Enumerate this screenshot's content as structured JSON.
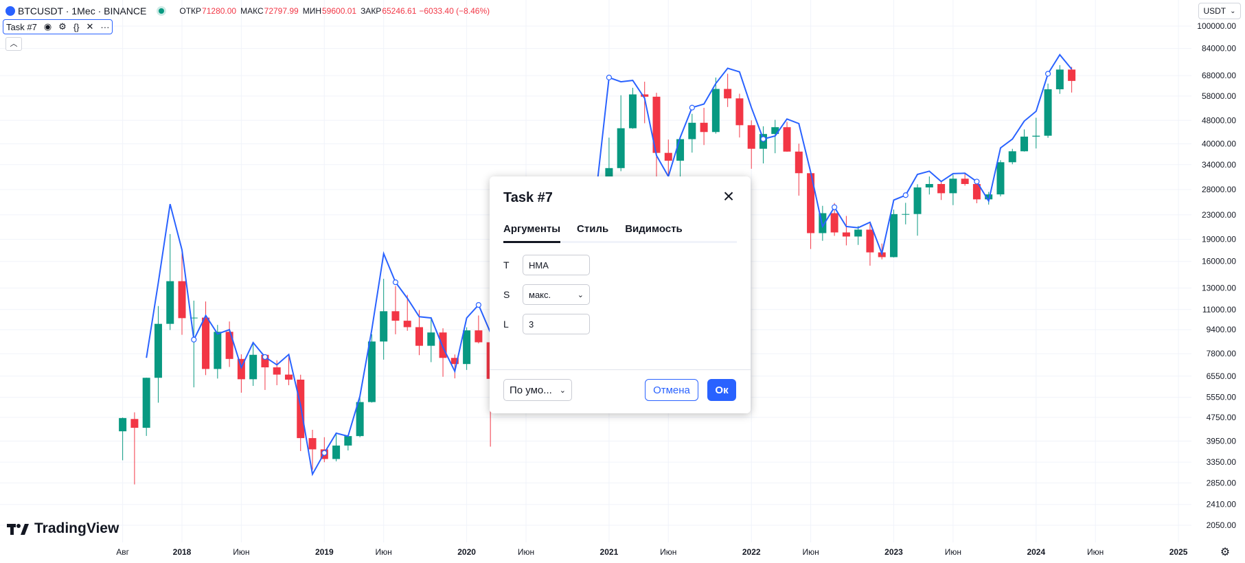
{
  "legend": {
    "symbol": "BTCUSDT · 1Мес · BINANCE",
    "open_label": "ОТКР",
    "open": "71280.00",
    "high_label": "МАКС",
    "high": "72797.99",
    "low_label": "МИН",
    "low": "59600.01",
    "close_label": "ЗАКР",
    "close": "65246.61",
    "change": "−6033.40 (−8.46%)"
  },
  "study": {
    "label": "Task #7",
    "icons": [
      "eye-icon",
      "settings-icon",
      "source-code-icon",
      "close-icon",
      "more-icon"
    ]
  },
  "currency": "USDT",
  "logo": "TradingView",
  "colors": {
    "up": "#089981",
    "down": "#f23645",
    "line": "#2962ff",
    "accent": "#2962ff"
  },
  "chart_data": {
    "type": "candlestick",
    "y_scale": "log",
    "y_ticks": [
      "100000.00",
      "84000.00",
      "68000.00",
      "58000.00",
      "48000.00",
      "40000.00",
      "34000.00",
      "28000.00",
      "23000.00",
      "19000.00",
      "16000.00",
      "13000.00",
      "11000.00",
      "9400.00",
      "7800.00",
      "6550.00",
      "5550.00",
      "4750.00",
      "3950.00",
      "3350.00",
      "2850.00",
      "2410.00",
      "2050.00"
    ],
    "x_ticks": [
      "Авг",
      "2018",
      "Июн",
      "2019",
      "Июн",
      "2020",
      "Июн",
      "2021",
      "Июн",
      "2022",
      "Июн",
      "2023",
      "Июн",
      "2024",
      "Июн",
      "2025"
    ],
    "candles": [
      {
        "m": "2017-08",
        "o": 4261,
        "h": 4745,
        "l": 3400,
        "c": 4724
      },
      {
        "m": "2017-09",
        "o": 4689,
        "h": 4939,
        "l": 2817,
        "c": 4378
      },
      {
        "m": "2017-10",
        "o": 4378,
        "h": 6470,
        "l": 4110,
        "c": 6463
      },
      {
        "m": "2017-11",
        "o": 6463,
        "h": 11300,
        "l": 5325,
        "c": 9838
      },
      {
        "m": "2017-12",
        "o": 9838,
        "h": 19798,
        "l": 9380,
        "c": 13716
      },
      {
        "m": "2018-01",
        "o": 13716,
        "h": 17176,
        "l": 9035,
        "c": 10285
      },
      {
        "m": "2018-02",
        "o": 10285,
        "h": 11786,
        "l": 6000,
        "c": 10326
      },
      {
        "m": "2018-03",
        "o": 10326,
        "h": 11710,
        "l": 6600,
        "c": 6923
      },
      {
        "m": "2018-04",
        "o": 6923,
        "h": 9759,
        "l": 6425,
        "c": 9246
      },
      {
        "m": "2018-05",
        "o": 9246,
        "h": 10020,
        "l": 7032,
        "c": 7485
      },
      {
        "m": "2018-06",
        "o": 7485,
        "h": 7760,
        "l": 5755,
        "c": 6391
      },
      {
        "m": "2018-07",
        "o": 6391,
        "h": 8507,
        "l": 6070,
        "c": 7730
      },
      {
        "m": "2018-08",
        "o": 7730,
        "h": 7750,
        "l": 5880,
        "c": 7011
      },
      {
        "m": "2018-09",
        "o": 7011,
        "h": 7410,
        "l": 6100,
        "c": 6626
      },
      {
        "m": "2018-10",
        "o": 6626,
        "h": 7680,
        "l": 6100,
        "c": 6371
      },
      {
        "m": "2018-11",
        "o": 6371,
        "h": 6620,
        "l": 3652,
        "c": 4041
      },
      {
        "m": "2018-12",
        "o": 4041,
        "h": 4311,
        "l": 3156,
        "c": 3702
      },
      {
        "m": "2019-01",
        "o": 3702,
        "h": 4069,
        "l": 3349,
        "c": 3434
      },
      {
        "m": "2019-02",
        "o": 3434,
        "h": 4198,
        "l": 3373,
        "c": 3813
      },
      {
        "m": "2019-03",
        "o": 3813,
        "h": 4140,
        "l": 3670,
        "c": 4105
      },
      {
        "m": "2019-04",
        "o": 4105,
        "h": 5600,
        "l": 4067,
        "c": 5350
      },
      {
        "m": "2019-05",
        "o": 5350,
        "h": 9074,
        "l": 5328,
        "c": 8574
      },
      {
        "m": "2019-06",
        "o": 8574,
        "h": 13970,
        "l": 7444,
        "c": 10854
      },
      {
        "m": "2019-07",
        "o": 10854,
        "h": 13200,
        "l": 9070,
        "c": 10080
      },
      {
        "m": "2019-08",
        "o": 10080,
        "h": 12325,
        "l": 9320,
        "c": 9588
      },
      {
        "m": "2019-09",
        "o": 9588,
        "h": 10954,
        "l": 7710,
        "c": 8293
      },
      {
        "m": "2019-10",
        "o": 8293,
        "h": 10370,
        "l": 7300,
        "c": 9199
      },
      {
        "m": "2019-11",
        "o": 9199,
        "h": 9505,
        "l": 6515,
        "c": 7546
      },
      {
        "m": "2019-12",
        "o": 7546,
        "h": 7750,
        "l": 6435,
        "c": 7195
      },
      {
        "m": "2020-01",
        "o": 7195,
        "h": 9578,
        "l": 6871,
        "c": 9351
      },
      {
        "m": "2020-02",
        "o": 9351,
        "h": 10500,
        "l": 8445,
        "c": 8523
      },
      {
        "m": "2020-03",
        "o": 8523,
        "h": 9188,
        "l": 3782,
        "c": 6410
      },
      {
        "m": "2020-12",
        "o": 19695,
        "h": 29300,
        "l": 17572,
        "c": 28923
      },
      {
        "m": "2021-01",
        "o": 28923,
        "h": 41950,
        "l": 28130,
        "c": 33093
      },
      {
        "m": "2021-02",
        "o": 33093,
        "h": 58352,
        "l": 32296,
        "c": 45135
      },
      {
        "m": "2021-03",
        "o": 45135,
        "h": 61844,
        "l": 44950,
        "c": 58741
      },
      {
        "m": "2021-04",
        "o": 58741,
        "h": 64854,
        "l": 46930,
        "c": 57694
      },
      {
        "m": "2021-05",
        "o": 57694,
        "h": 59500,
        "l": 30000,
        "c": 37254
      },
      {
        "m": "2021-06",
        "o": 37254,
        "h": 41330,
        "l": 28805,
        "c": 35045
      },
      {
        "m": "2021-07",
        "o": 35045,
        "h": 42448,
        "l": 29278,
        "c": 41461
      },
      {
        "m": "2021-08",
        "o": 41461,
        "h": 50500,
        "l": 37332,
        "c": 47100
      },
      {
        "m": "2021-09",
        "o": 47100,
        "h": 52920,
        "l": 39600,
        "c": 43824
      },
      {
        "m": "2021-10",
        "o": 43824,
        "h": 67000,
        "l": 43283,
        "c": 61299
      },
      {
        "m": "2021-11",
        "o": 61299,
        "h": 69000,
        "l": 53256,
        "c": 56950
      },
      {
        "m": "2021-12",
        "o": 56950,
        "h": 59053,
        "l": 42000,
        "c": 46216
      },
      {
        "m": "2022-01",
        "o": 46216,
        "h": 47990,
        "l": 32917,
        "c": 38466
      },
      {
        "m": "2022-02",
        "o": 38466,
        "h": 45821,
        "l": 34322,
        "c": 43160
      },
      {
        "m": "2022-03",
        "o": 43160,
        "h": 48189,
        "l": 37155,
        "c": 45510
      },
      {
        "m": "2022-04",
        "o": 45510,
        "h": 47444,
        "l": 37578,
        "c": 37630
      },
      {
        "m": "2022-05",
        "o": 37630,
        "h": 40023,
        "l": 26700,
        "c": 31801
      },
      {
        "m": "2022-06",
        "o": 31801,
        "h": 31982,
        "l": 17622,
        "c": 19942
      },
      {
        "m": "2022-07",
        "o": 19942,
        "h": 24668,
        "l": 18781,
        "c": 23293
      },
      {
        "m": "2022-08",
        "o": 23293,
        "h": 25211,
        "l": 19520,
        "c": 20050
      },
      {
        "m": "2022-09",
        "o": 20050,
        "h": 22799,
        "l": 18125,
        "c": 19422
      },
      {
        "m": "2022-10",
        "o": 19422,
        "h": 21085,
        "l": 18190,
        "c": 20490
      },
      {
        "m": "2022-11",
        "o": 20490,
        "h": 21480,
        "l": 15476,
        "c": 17164
      },
      {
        "m": "2022-12",
        "o": 17164,
        "h": 18387,
        "l": 16256,
        "c": 16542
      },
      {
        "m": "2023-01",
        "o": 16542,
        "h": 23960,
        "l": 16499,
        "c": 23125
      },
      {
        "m": "2023-02",
        "o": 23125,
        "h": 25250,
        "l": 21351,
        "c": 23141
      },
      {
        "m": "2023-03",
        "o": 23141,
        "h": 29184,
        "l": 19549,
        "c": 28465
      },
      {
        "m": "2023-04",
        "o": 28465,
        "h": 31000,
        "l": 26942,
        "c": 29233
      },
      {
        "m": "2023-05",
        "o": 29233,
        "h": 29820,
        "l": 25811,
        "c": 27210
      },
      {
        "m": "2023-06",
        "o": 27210,
        "h": 31431,
        "l": 24800,
        "c": 30472
      },
      {
        "m": "2023-07",
        "o": 30472,
        "h": 31804,
        "l": 28861,
        "c": 29232
      },
      {
        "m": "2023-08",
        "o": 29232,
        "h": 30244,
        "l": 25166,
        "c": 25940
      },
      {
        "m": "2023-09",
        "o": 25940,
        "h": 27483,
        "l": 24901,
        "c": 26962
      },
      {
        "m": "2023-10",
        "o": 26962,
        "h": 35198,
        "l": 26538,
        "c": 34639
      },
      {
        "m": "2023-11",
        "o": 34639,
        "h": 38450,
        "l": 34097,
        "c": 37723
      },
      {
        "m": "2023-12",
        "o": 37723,
        "h": 44729,
        "l": 37629,
        "c": 42284
      },
      {
        "m": "2024-01",
        "o": 42284,
        "h": 48969,
        "l": 38555,
        "c": 42580
      },
      {
        "m": "2024-02",
        "o": 42580,
        "h": 63913,
        "l": 41884,
        "c": 61130
      },
      {
        "m": "2024-03",
        "o": 61130,
        "h": 73777,
        "l": 59005,
        "c": 71280
      },
      {
        "m": "2024-04",
        "o": 71280,
        "h": 72797,
        "l": 59600,
        "c": 65246
      }
    ],
    "line_series": {
      "name": "Task #7",
      "points": [
        {
          "m": "2017-10",
          "v": 7550
        },
        {
          "m": "2017-11",
          "v": 13500
        },
        {
          "m": "2017-12",
          "v": 25000
        },
        {
          "m": "2018-01",
          "v": 17500
        },
        {
          "m": "2018-02",
          "v": 8700
        },
        {
          "m": "2018-03",
          "v": 10500
        },
        {
          "m": "2018-04",
          "v": 9100
        },
        {
          "m": "2018-05",
          "v": 9400
        },
        {
          "m": "2018-06",
          "v": 7000
        },
        {
          "m": "2018-07",
          "v": 8500
        },
        {
          "m": "2018-08",
          "v": 7600
        },
        {
          "m": "2018-09",
          "v": 7150
        },
        {
          "m": "2018-10",
          "v": 7750
        },
        {
          "m": "2018-11",
          "v": 5200
        },
        {
          "m": "2018-12",
          "v": 3050
        },
        {
          "m": "2019-01",
          "v": 3600
        },
        {
          "m": "2019-02",
          "v": 4200
        },
        {
          "m": "2019-03",
          "v": 4100
        },
        {
          "m": "2019-04",
          "v": 5600
        },
        {
          "m": "2019-05",
          "v": 9400
        },
        {
          "m": "2019-06",
          "v": 17000
        },
        {
          "m": "2019-07",
          "v": 13600
        },
        {
          "m": "2019-08",
          "v": 12000
        },
        {
          "m": "2019-09",
          "v": 10400
        },
        {
          "m": "2019-10",
          "v": 10300
        },
        {
          "m": "2019-11",
          "v": 8200
        },
        {
          "m": "2019-12",
          "v": 6800
        },
        {
          "m": "2020-01",
          "v": 10300
        },
        {
          "m": "2020-02",
          "v": 11400
        },
        {
          "m": "2020-03",
          "v": 9200
        },
        {
          "m": "2020-12",
          "v": 29300
        },
        {
          "m": "2021-01",
          "v": 67000
        },
        {
          "m": "2021-02",
          "v": 64800
        },
        {
          "m": "2021-03",
          "v": 65500
        },
        {
          "m": "2021-04",
          "v": 57000
        },
        {
          "m": "2021-05",
          "v": 36500
        },
        {
          "m": "2021-06",
          "v": 31000
        },
        {
          "m": "2021-07",
          "v": 42000
        },
        {
          "m": "2021-08",
          "v": 53000
        },
        {
          "m": "2021-09",
          "v": 54500
        },
        {
          "m": "2021-10",
          "v": 64000
        },
        {
          "m": "2021-11",
          "v": 72000
        },
        {
          "m": "2021-12",
          "v": 70000
        },
        {
          "m": "2022-01",
          "v": 53000
        },
        {
          "m": "2022-02",
          "v": 41500
        },
        {
          "m": "2022-03",
          "v": 42500
        },
        {
          "m": "2022-04",
          "v": 48500
        },
        {
          "m": "2022-05",
          "v": 46800
        },
        {
          "m": "2022-06",
          "v": 32000
        },
        {
          "m": "2022-07",
          "v": 21000
        },
        {
          "m": "2022-08",
          "v": 24400
        },
        {
          "m": "2022-09",
          "v": 21000
        },
        {
          "m": "2022-10",
          "v": 20800
        },
        {
          "m": "2022-11",
          "v": 21700
        },
        {
          "m": "2022-12",
          "v": 17000
        },
        {
          "m": "2023-01",
          "v": 25800
        },
        {
          "m": "2023-02",
          "v": 26800
        },
        {
          "m": "2023-03",
          "v": 31500
        },
        {
          "m": "2023-04",
          "v": 32300
        },
        {
          "m": "2023-05",
          "v": 29800
        },
        {
          "m": "2023-06",
          "v": 31700
        },
        {
          "m": "2023-07",
          "v": 31800
        },
        {
          "m": "2023-08",
          "v": 29800
        },
        {
          "m": "2023-09",
          "v": 25600
        },
        {
          "m": "2023-10",
          "v": 38700
        },
        {
          "m": "2023-11",
          "v": 41500
        },
        {
          "m": "2023-12",
          "v": 47700
        },
        {
          "m": "2024-01",
          "v": 51500
        },
        {
          "m": "2024-02",
          "v": 69000
        },
        {
          "m": "2024-03",
          "v": 80000
        },
        {
          "m": "2024-04",
          "v": 71500
        }
      ],
      "markers": [
        "2018-02",
        "2018-08",
        "2019-01",
        "2019-07",
        "2020-02",
        "2021-01",
        "2021-08",
        "2022-02",
        "2022-08",
        "2023-02",
        "2023-08",
        "2024-02"
      ]
    }
  },
  "dialog": {
    "title": "Task #7",
    "tabs": [
      {
        "label": "Аргументы",
        "active": true
      },
      {
        "label": "Стиль",
        "active": false
      },
      {
        "label": "Видимость",
        "active": false
      }
    ],
    "fields": [
      {
        "label": "T",
        "value": "HMA"
      },
      {
        "label": "S",
        "value": "макс."
      },
      {
        "label": "L",
        "value": "3"
      }
    ],
    "defaults_label": "По умо...",
    "cancel_label": "Отмена",
    "ok_label": "Ок"
  }
}
